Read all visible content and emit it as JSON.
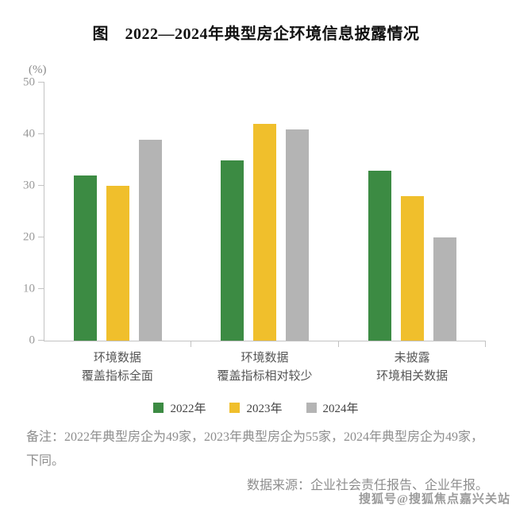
{
  "chart_data": {
    "type": "bar",
    "title": "图　2022—2024年典型房企环境信息披露情况",
    "unit_label": "(%)",
    "ylim": [
      0,
      50
    ],
    "ytick_step": 10,
    "grid": false,
    "legend_position": "bottom",
    "categories": [
      "环境数据\n覆盖指标全面",
      "环境数据\n覆盖指标相对较少",
      "未披露\n环境相关数据"
    ],
    "series": [
      {
        "name": "2022年",
        "color": "#3c8b43",
        "values": [
          32,
          35,
          33
        ]
      },
      {
        "name": "2023年",
        "color": "#f0bf2c",
        "values": [
          30,
          42,
          28
        ]
      },
      {
        "name": "2024年",
        "color": "#b4b4b4",
        "values": [
          39,
          41,
          20
        ]
      }
    ]
  },
  "notes": {
    "remark": "备注：2022年典型房企为49家，2023年典型房企为55家，2024年典型房企为49家，下同。",
    "source": "数据来源：企业社会责任报告、企业年报。"
  },
  "watermark": "搜狐号@搜狐焦点嘉兴关站"
}
